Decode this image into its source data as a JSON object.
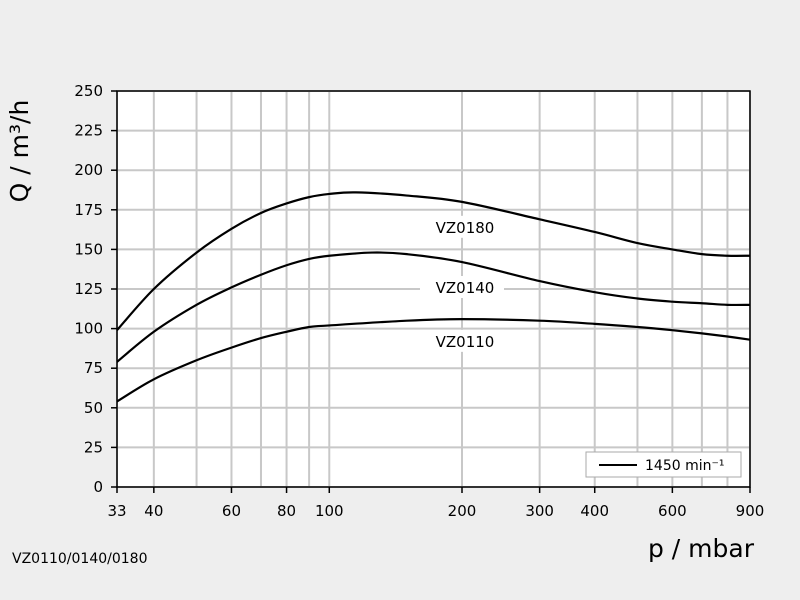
{
  "chart_data": {
    "type": "line",
    "caption": "VZ0110/0140/0180",
    "xlabel": "p / mbar",
    "ylabel": "Q / m³/h",
    "x_scale": "log",
    "xlim": [
      33,
      900
    ],
    "ylim": [
      0,
      250
    ],
    "x_ticks": [
      33,
      40,
      60,
      80,
      100,
      200,
      300,
      400,
      600,
      900
    ],
    "x_gridlines": [
      33,
      40,
      50,
      60,
      70,
      80,
      90,
      100,
      200,
      300,
      400,
      500,
      600,
      700,
      800,
      900
    ],
    "y_ticks": [
      0,
      25,
      50,
      75,
      100,
      125,
      150,
      175,
      200,
      225,
      250
    ],
    "grid": true,
    "legend": {
      "position": "bottom-right",
      "label": "1450 min⁻¹"
    },
    "series": [
      {
        "name": "VZ0180",
        "color": "#000000",
        "label_at": {
          "x": 200,
          "y": 163
        },
        "points": [
          [
            33,
            99
          ],
          [
            40,
            125
          ],
          [
            50,
            148
          ],
          [
            60,
            163
          ],
          [
            70,
            173
          ],
          [
            80,
            179
          ],
          [
            90,
            183
          ],
          [
            100,
            185
          ],
          [
            115,
            186
          ],
          [
            150,
            184
          ],
          [
            200,
            180
          ],
          [
            300,
            169
          ],
          [
            400,
            161
          ],
          [
            500,
            154
          ],
          [
            600,
            150
          ],
          [
            700,
            147
          ],
          [
            800,
            146
          ],
          [
            900,
            146
          ]
        ]
      },
      {
        "name": "VZ0140",
        "color": "#000000",
        "label_at": {
          "x": 200,
          "y": 125
        },
        "points": [
          [
            33,
            79
          ],
          [
            40,
            98
          ],
          [
            50,
            115
          ],
          [
            60,
            126
          ],
          [
            70,
            134
          ],
          [
            80,
            140
          ],
          [
            90,
            144
          ],
          [
            100,
            146
          ],
          [
            125,
            148
          ],
          [
            150,
            147
          ],
          [
            200,
            142
          ],
          [
            300,
            130
          ],
          [
            400,
            123
          ],
          [
            500,
            119
          ],
          [
            600,
            117
          ],
          [
            700,
            116
          ],
          [
            800,
            115
          ],
          [
            900,
            115
          ]
        ]
      },
      {
        "name": "VZ0110",
        "color": "#000000",
        "label_at": {
          "x": 200,
          "y": 91
        },
        "points": [
          [
            33,
            54
          ],
          [
            40,
            68
          ],
          [
            50,
            80
          ],
          [
            60,
            88
          ],
          [
            70,
            94
          ],
          [
            80,
            98
          ],
          [
            90,
            101
          ],
          [
            100,
            102
          ],
          [
            150,
            105
          ],
          [
            200,
            106
          ],
          [
            300,
            105
          ],
          [
            400,
            103
          ],
          [
            500,
            101
          ],
          [
            600,
            99
          ],
          [
            700,
            97
          ],
          [
            800,
            95
          ],
          [
            900,
            93
          ]
        ]
      }
    ]
  }
}
